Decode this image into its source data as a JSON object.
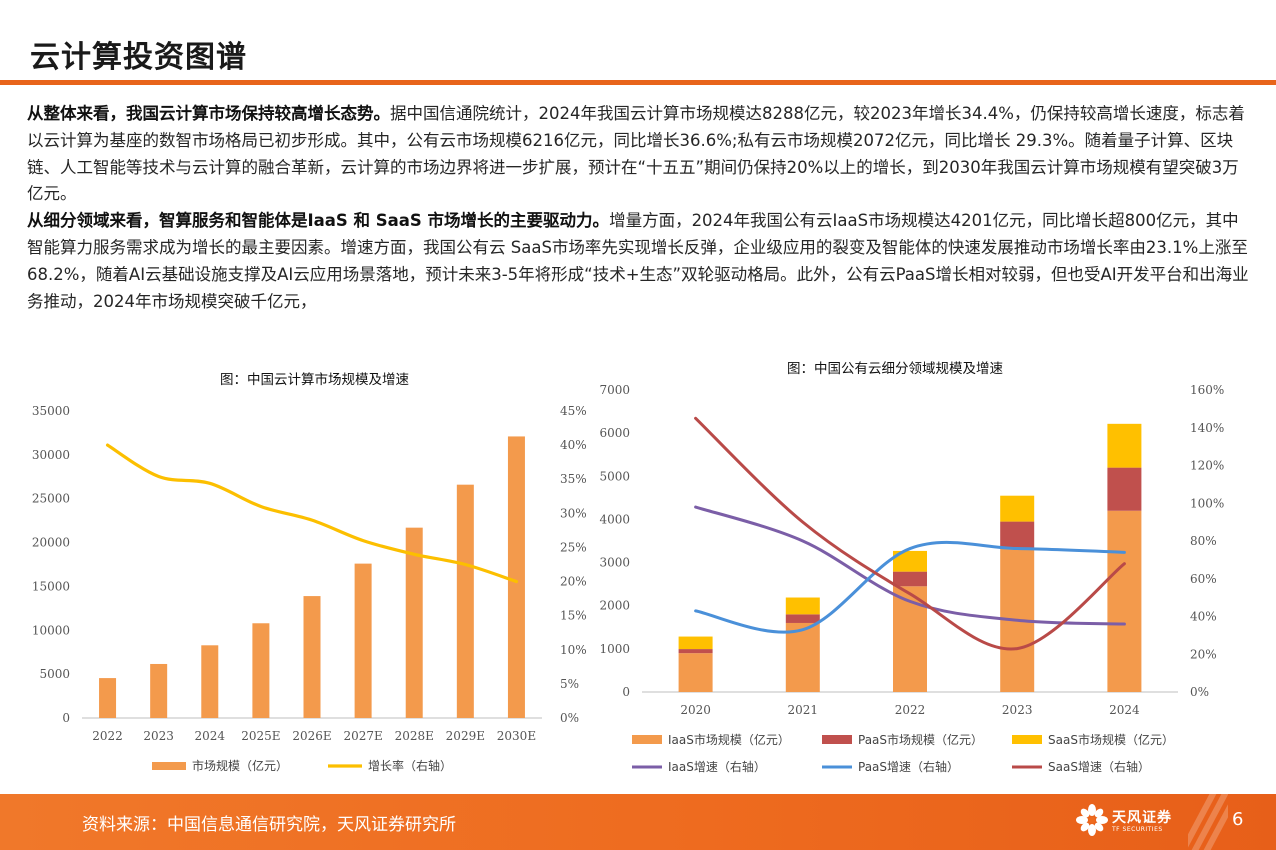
{
  "page": {
    "title": "云计算投资图谱",
    "para1_lead": "从整体来看，我国云计算市场保持较高增长态势。",
    "para1_text": "据中国信通院统计，2024年我国云计算市场规模达8288亿元，较2023年增长34.4%，仍保持较高增长速度，标志着以云计算为基座的数智市场格局已初步形成。其中，公有云市场规模6216亿元，同比增长36.6%;私有云市场规模2072亿元，同比增长 29.3%。随着量子计算、区块链、人工智能等技术与云计算的融合革新，云计算的市场边界将进一步扩展，预计在“十五五”期间仍保持20%以上的增长，到2030年我国云计算市场规模有望突破3万亿元。",
    "para2_lead": "从细分领域来看，智算服务和智能体是IaaS 和 SaaS 市场增长的主要驱动力。",
    "para2_text": "增量方面，2024年我国公有云IaaS市场规模达4201亿元，同比增长超800亿元，其中智能算力服务需求成为增长的最主要因素。增速方面，我国公有云 SaaS市场率先实现增长反弹，企业级应用的裂变及智能体的快速发展推动市场增长率由23.1%上涨至68.2%，随着AI云基础设施支撑及AI云应用场景落地，预计未来3-5年将形成“技术+生态”双轮驱动格局。此外，公有云PaaS增长相对较弱，但也受AI开发平台和出海业务推动，2024年市场规模突破千亿元，"
  },
  "footer": {
    "source": "资料来源：中国信息通信研究院，天风证券研究所",
    "logo_cn": "天风证券",
    "logo_en": "TF SECURITIES",
    "page_number": "6"
  },
  "colors": {
    "accent": "#e8641b",
    "bar_orange": "#f39a4c",
    "line_yellow": "#fcbf00",
    "iaas": "#f39a4c",
    "paas": "#c0504d",
    "saas": "#ffc000",
    "iaas_line": "#7b5ea7",
    "paas_line": "#4a90d9",
    "saas_line": "#b94a48"
  },
  "chart_data": [
    {
      "type": "bar",
      "title": "图：中国云计算市场规模及增速",
      "categories": [
        "2022",
        "2023",
        "2024",
        "2025E",
        "2026E",
        "2027E",
        "2028E",
        "2029E",
        "2030E"
      ],
      "series": [
        {
          "name": "市场规模（亿元）",
          "type": "bar",
          "axis": "left",
          "values": [
            4550,
            6160,
            8288,
            10800,
            13900,
            17600,
            21700,
            26600,
            32100
          ]
        },
        {
          "name": "增长率（右轴）",
          "type": "line",
          "axis": "right",
          "values": [
            0.4,
            0.354,
            0.344,
            0.31,
            0.29,
            0.26,
            0.24,
            0.225,
            0.2
          ]
        }
      ],
      "left_axis": {
        "ylim": [
          0,
          35000
        ],
        "ticks": [
          0,
          5000,
          10000,
          15000,
          20000,
          25000,
          30000,
          35000
        ]
      },
      "right_axis": {
        "ylim": [
          0,
          0.45
        ],
        "ticks": [
          "0%",
          "5%",
          "10%",
          "15%",
          "20%",
          "25%",
          "30%",
          "35%",
          "40%",
          "45%"
        ]
      },
      "legend": "bottom",
      "grid": false
    },
    {
      "type": "bar",
      "stacked": true,
      "title": "图：中国公有云细分领域规模及增速",
      "categories": [
        "2020",
        "2021",
        "2022",
        "2023",
        "2024"
      ],
      "series": [
        {
          "name": "IaaS市场规模（亿元）",
          "type": "bar",
          "axis": "left",
          "values": [
            900,
            1600,
            2450,
            3350,
            4201
          ]
        },
        {
          "name": "PaaS市场规模（亿元）",
          "type": "bar",
          "axis": "left",
          "values": [
            95,
            200,
            340,
            600,
            1000
          ]
        },
        {
          "name": "SaaS市场规模（亿元）",
          "type": "bar",
          "axis": "left",
          "values": [
            290,
            390,
            480,
            600,
            1015
          ]
        },
        {
          "name": "IaaS增速（右轴）",
          "type": "line",
          "axis": "right",
          "values": [
            0.98,
            0.8,
            0.48,
            0.38,
            0.36
          ]
        },
        {
          "name": "PaaS增速（右轴）",
          "type": "line",
          "axis": "right",
          "values": [
            0.43,
            0.33,
            0.76,
            0.76,
            0.74
          ]
        },
        {
          "name": "SaaS增速（右轴）",
          "type": "line",
          "axis": "right",
          "values": [
            1.45,
            0.9,
            0.52,
            0.23,
            0.68
          ]
        }
      ],
      "left_axis": {
        "ylim": [
          0,
          7000
        ],
        "ticks": [
          0,
          1000,
          2000,
          3000,
          4000,
          5000,
          6000,
          7000
        ]
      },
      "right_axis": {
        "ylim": [
          0,
          1.6
        ],
        "ticks": [
          "0%",
          "20%",
          "40%",
          "60%",
          "80%",
          "100%",
          "120%",
          "140%",
          "160%"
        ]
      },
      "legend": "bottom",
      "grid": false
    }
  ]
}
